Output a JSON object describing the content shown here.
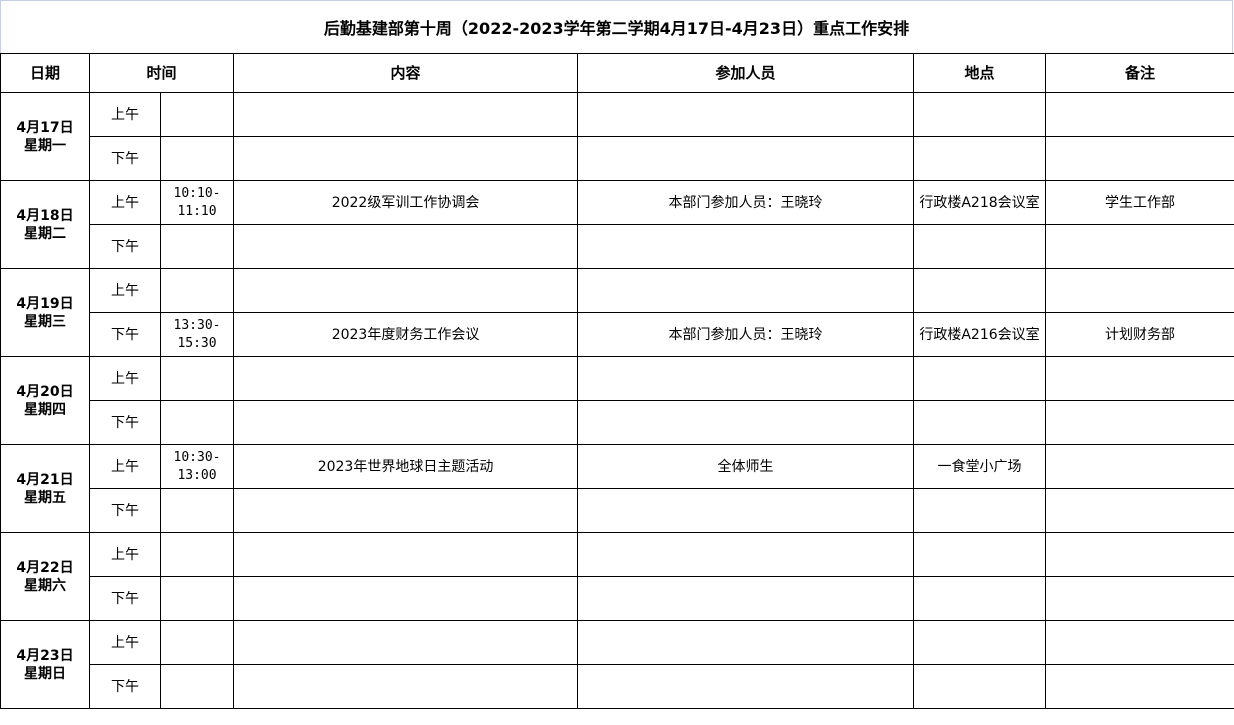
{
  "title": "后勤基建部第十周（2022-2023学年第二学期4月17日-4月23日）重点工作安排",
  "headers": [
    "日期",
    "时间",
    "内容",
    "参加人员",
    "地点",
    "备注"
  ],
  "days": [
    {
      "date": "4月17日",
      "weekday": "星期一",
      "slots": [
        {
          "period": "上午",
          "time": "",
          "content": "",
          "people": "",
          "place": "",
          "note": ""
        },
        {
          "period": "下午",
          "time": "",
          "content": "",
          "people": "",
          "place": "",
          "note": ""
        }
      ]
    },
    {
      "date": "4月18日",
      "weekday": "星期二",
      "slots": [
        {
          "period": "上午",
          "time": "10:10-11:10",
          "content": "2022级军训工作协调会",
          "people": "本部门参加人员：王晓玲",
          "place": "行政楼A218会议室",
          "note": "学生工作部"
        },
        {
          "period": "下午",
          "time": "",
          "content": "",
          "people": "",
          "place": "",
          "note": ""
        }
      ]
    },
    {
      "date": "4月19日",
      "weekday": "星期三",
      "slots": [
        {
          "period": "上午",
          "time": "",
          "content": "",
          "people": "",
          "place": "",
          "note": ""
        },
        {
          "period": "下午",
          "time": "13:30-15:30",
          "content": "2023年度财务工作会议",
          "people": "本部门参加人员：王晓玲",
          "place": "行政楼A216会议室",
          "note": "计划财务部"
        }
      ]
    },
    {
      "date": "4月20日",
      "weekday": "星期四",
      "slots": [
        {
          "period": "上午",
          "time": "",
          "content": "",
          "people": "",
          "place": "",
          "note": ""
        },
        {
          "period": "下午",
          "time": "",
          "content": "",
          "people": "",
          "place": "",
          "note": ""
        }
      ]
    },
    {
      "date": "4月21日",
      "weekday": "星期五",
      "slots": [
        {
          "period": "上午",
          "time": "10:30-13:00",
          "content": "2023年世界地球日主题活动",
          "people": "全体师生",
          "place": "一食堂小广场",
          "note": ""
        },
        {
          "period": "下午",
          "time": "",
          "content": "",
          "people": "",
          "place": "",
          "note": ""
        }
      ]
    },
    {
      "date": "4月22日",
      "weekday": "星期六",
      "slots": [
        {
          "period": "上午",
          "time": "",
          "content": "",
          "people": "",
          "place": "",
          "note": ""
        },
        {
          "period": "下午",
          "time": "",
          "content": "",
          "people": "",
          "place": "",
          "note": ""
        }
      ]
    },
    {
      "date": "4月23日",
      "weekday": "星期日",
      "slots": [
        {
          "period": "上午",
          "time": "",
          "content": "",
          "people": "",
          "place": "",
          "note": ""
        },
        {
          "period": "下午",
          "time": "",
          "content": "",
          "people": "",
          "place": "",
          "note": ""
        }
      ]
    }
  ]
}
